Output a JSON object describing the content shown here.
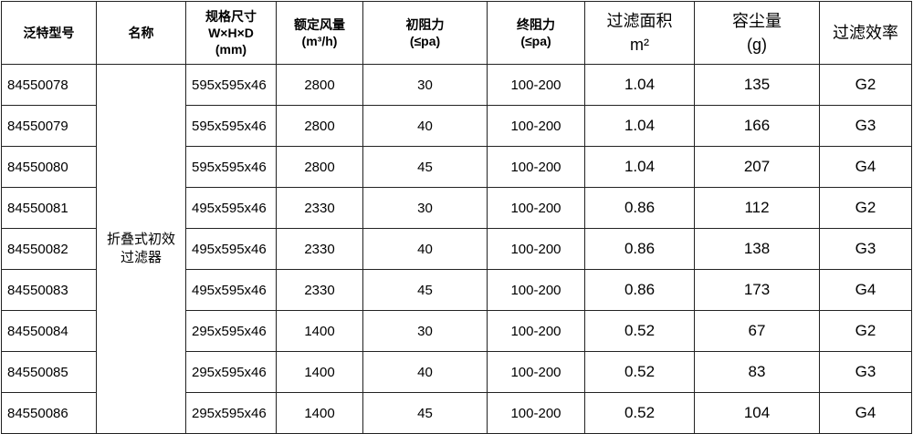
{
  "headers": [
    {
      "line1": "泛特型号"
    },
    {
      "line1": "名称"
    },
    {
      "line1": "规格尺寸",
      "line2": "W×H×D",
      "line3": "(mm)"
    },
    {
      "line1": "额定风量",
      "line2": "(m³/h)"
    },
    {
      "line1": "初阻力",
      "line2": "(≤pa)"
    },
    {
      "line1": "终阻力",
      "line2": "(≤pa)"
    },
    {
      "line1": "过滤面积",
      "line2": "m²"
    },
    {
      "line1": "容尘量",
      "line2": "(g)"
    },
    {
      "line1": "过滤效率"
    }
  ],
  "name_line1": "折叠式初效",
  "name_line2": "过滤器",
  "rows": [
    [
      "84550078",
      "595x595x46",
      "2800",
      "30",
      "100-200",
      "1.04",
      "135",
      "G2"
    ],
    [
      "84550079",
      "595x595x46",
      "2800",
      "40",
      "100-200",
      "1.04",
      "166",
      "G3"
    ],
    [
      "84550080",
      "595x595x46",
      "2800",
      "45",
      "100-200",
      "1.04",
      "207",
      "G4"
    ],
    [
      "84550081",
      "495x595x46",
      "2330",
      "30",
      "100-200",
      "0.86",
      "112",
      "G2"
    ],
    [
      "84550082",
      "495x595x46",
      "2330",
      "40",
      "100-200",
      "0.86",
      "138",
      "G3"
    ],
    [
      "84550083",
      "495x595x46",
      "2330",
      "45",
      "100-200",
      "0.86",
      "173",
      "G4"
    ],
    [
      "84550084",
      "295x595x46",
      "1400",
      "30",
      "100-200",
      "0.52",
      "67",
      "G2"
    ],
    [
      "84550085",
      "295x595x46",
      "1400",
      "40",
      "100-200",
      "0.52",
      "83",
      "G3"
    ],
    [
      "84550086",
      "295x595x46",
      "1400",
      "45",
      "100-200",
      "0.52",
      "104",
      "G4"
    ]
  ]
}
